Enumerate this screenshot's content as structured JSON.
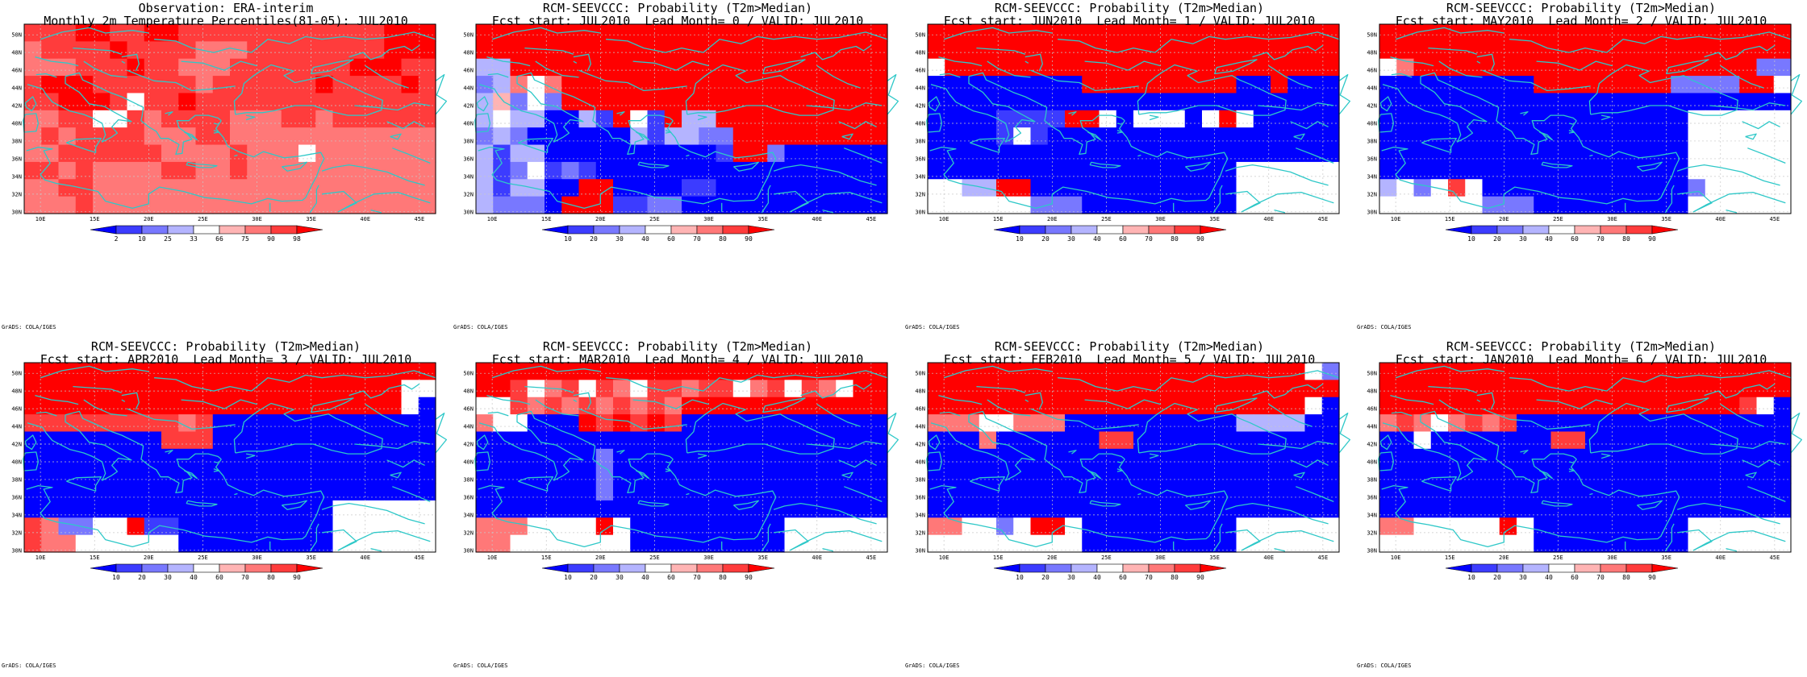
{
  "figure": {
    "credit": "GrADS: COLA/IGES",
    "lon_ticks": [
      "10E",
      "15E",
      "20E",
      "25E",
      "30E",
      "35E",
      "40E",
      "45E"
    ],
    "lat_ticks": [
      "50N",
      "48N",
      "46N",
      "44N",
      "42N",
      "40N",
      "38N",
      "36N",
      "34N",
      "32N",
      "30N"
    ],
    "lon_range": [
      8.5,
      46.5
    ],
    "lat_range": [
      29.8,
      51.2
    ],
    "grid_step_lon": 1.6,
    "grid_step_lat": 2.0,
    "coastline_color": "#2ec8c8",
    "gridline_style": "dashed-gray"
  },
  "colorbars": {
    "percentile": {
      "labels": [
        "2",
        "10",
        "25",
        "33",
        "66",
        "75",
        "90",
        "98"
      ],
      "colors": [
        "#0000ff",
        "#3c3cff",
        "#7878ff",
        "#b4b4ff",
        "#ffffff",
        "#ffb4b4",
        "#ff7878",
        "#ff3c3c",
        "#ff0000"
      ]
    },
    "probability": {
      "labels": [
        "10",
        "20",
        "30",
        "40",
        "60",
        "70",
        "80",
        "90"
      ],
      "colors": [
        "#0000ff",
        "#3c3cff",
        "#7878ff",
        "#b4b4ff",
        "#ffffff",
        "#ffb4b4",
        "#ff7878",
        "#ff3c3c",
        "#ff0000"
      ]
    }
  },
  "panels": [
    {
      "title1": "Observation: ERA-interim",
      "title2": "Monthly 2m Temperature Percentiles(81-05): JUL2010",
      "colorbar": "percentile",
      "pattern": "obs"
    },
    {
      "title1": "RCM-SEEVCCC: Probability (T2m>Median)",
      "title2": "Fcst start: JUL2010  Lead Month= 0 / VALID: JUL2010",
      "colorbar": "probability",
      "pattern": "lead0"
    },
    {
      "title1": "RCM-SEEVCCC: Probability (T2m>Median)",
      "title2": "Fcst start: JUN2010  Lead Month= 1 / VALID: JUL2010",
      "colorbar": "probability",
      "pattern": "lead1"
    },
    {
      "title1": "RCM-SEEVCCC: Probability (T2m>Median)",
      "title2": "Fcst start: MAY2010  Lead Month= 2 / VALID: JUL2010",
      "colorbar": "probability",
      "pattern": "lead2"
    },
    {
      "title1": "RCM-SEEVCCC: Probability (T2m>Median)",
      "title2": "Fcst start: APR2010  Lead Month= 3 / VALID: JUL2010",
      "colorbar": "probability",
      "pattern": "lead3"
    },
    {
      "title1": "RCM-SEEVCCC: Probability (T2m>Median)",
      "title2": "Fcst start: MAR2010  Lead Month= 4 / VALID: JUL2010",
      "colorbar": "probability",
      "pattern": "lead4"
    },
    {
      "title1": "RCM-SEEVCCC: Probability (T2m>Median)",
      "title2": "Fcst start: FEB2010  Lead Month= 5 / VALID: JUL2010",
      "colorbar": "probability",
      "pattern": "lead5"
    },
    {
      "title1": "RCM-SEEVCCC: Probability (T2m>Median)",
      "title2": "Fcst start: JAN2010  Lead Month= 6 / VALID: JUL2010",
      "colorbar": "probability",
      "pattern": "lead6"
    }
  ]
}
